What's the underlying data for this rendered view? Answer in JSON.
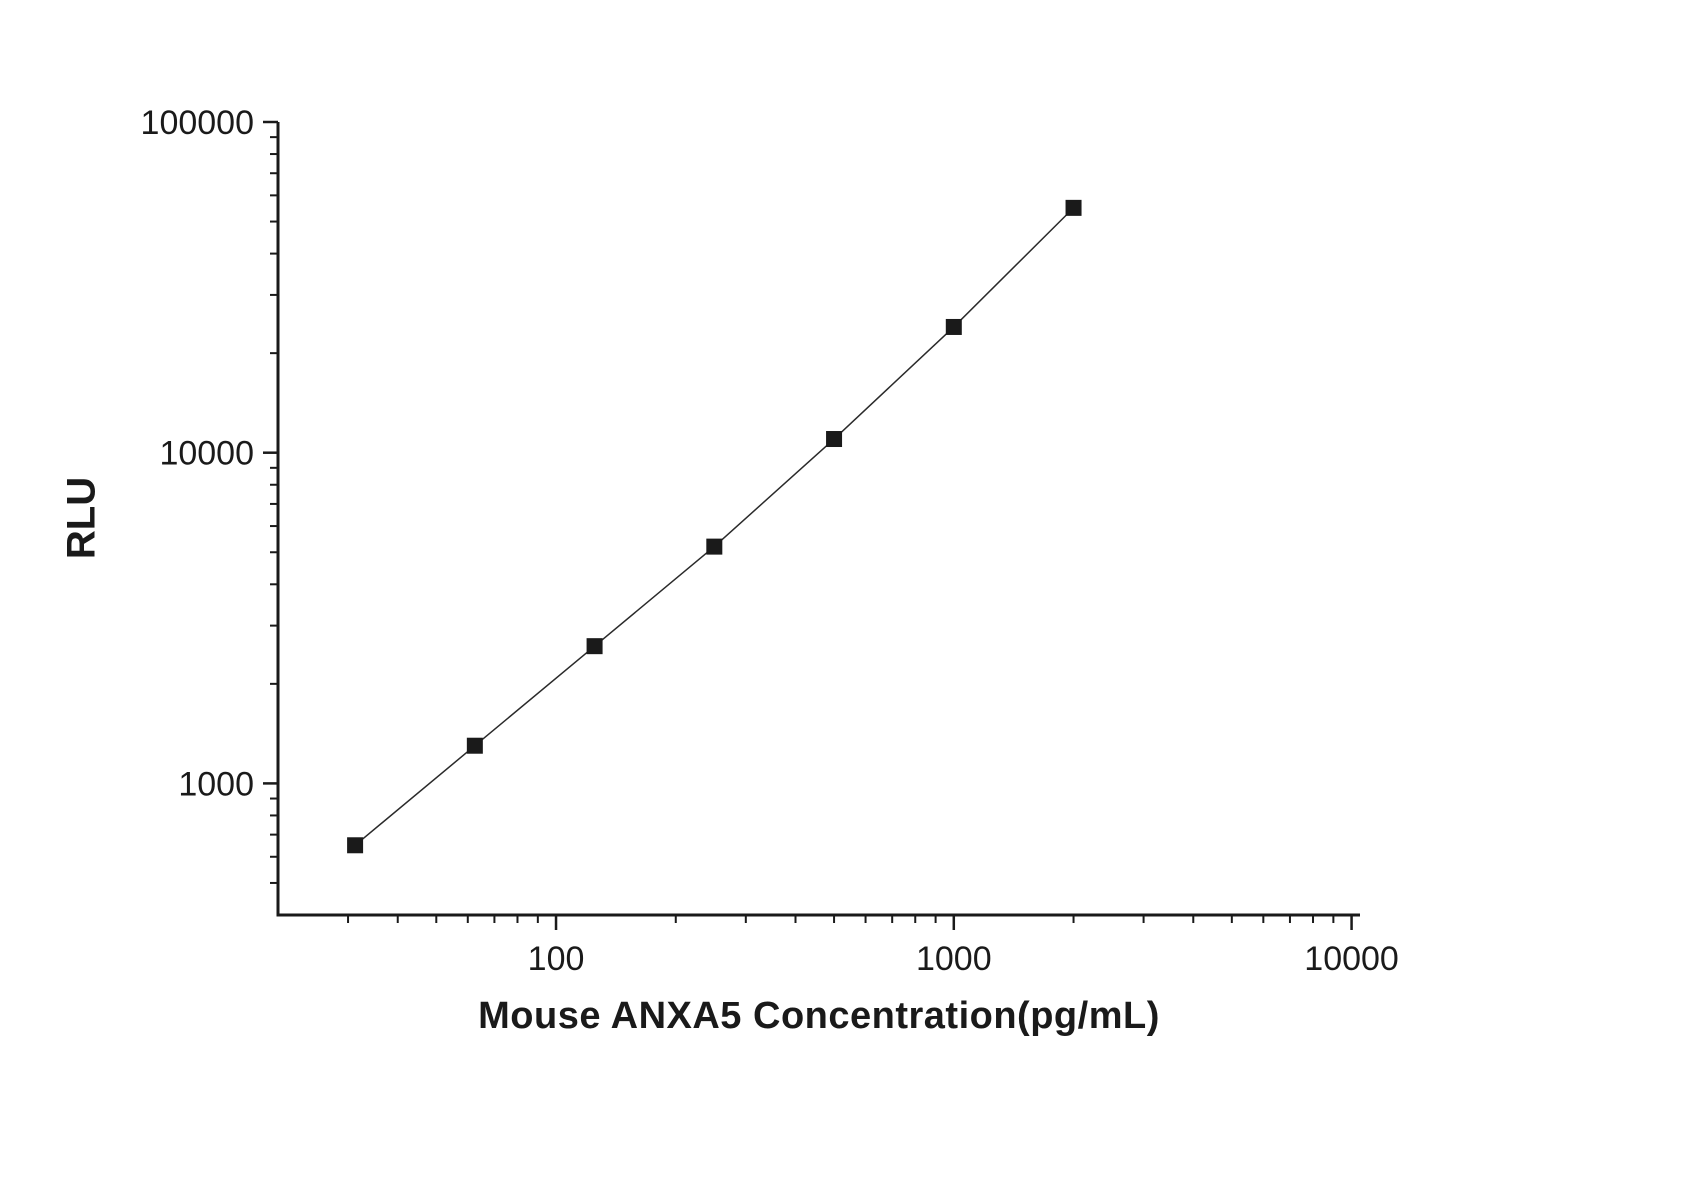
{
  "chart_data": {
    "type": "scatter",
    "title": "",
    "xlabel": "Mouse ANXA5 Concentration(pg/mL)",
    "ylabel": "RLU",
    "x_scale": "log",
    "y_scale": "log",
    "xlim": [
      20,
      10500
    ],
    "ylim": [
      400,
      100000
    ],
    "x_major_ticks": [
      100,
      1000,
      10000
    ],
    "x_tick_labels": [
      "100",
      "1000",
      "10000"
    ],
    "y_major_ticks": [
      1000,
      10000,
      100000
    ],
    "y_tick_labels": [
      "1000",
      "10000",
      "100000"
    ],
    "grid": false,
    "legend": "none",
    "background": "#ffffff",
    "axis_color": "#1a1a1a",
    "series": [
      {
        "name": "standard-curve",
        "x": [
          31.25,
          62.5,
          125,
          250,
          500,
          1000,
          2000
        ],
        "y": [
          650,
          1300,
          2600,
          5200,
          11000,
          24000,
          55000
        ],
        "marker": "square",
        "marker_size": 16,
        "marker_color": "#1a1a1a",
        "line_color": "#2a2a2a",
        "line_width": 1.5
      }
    ]
  }
}
